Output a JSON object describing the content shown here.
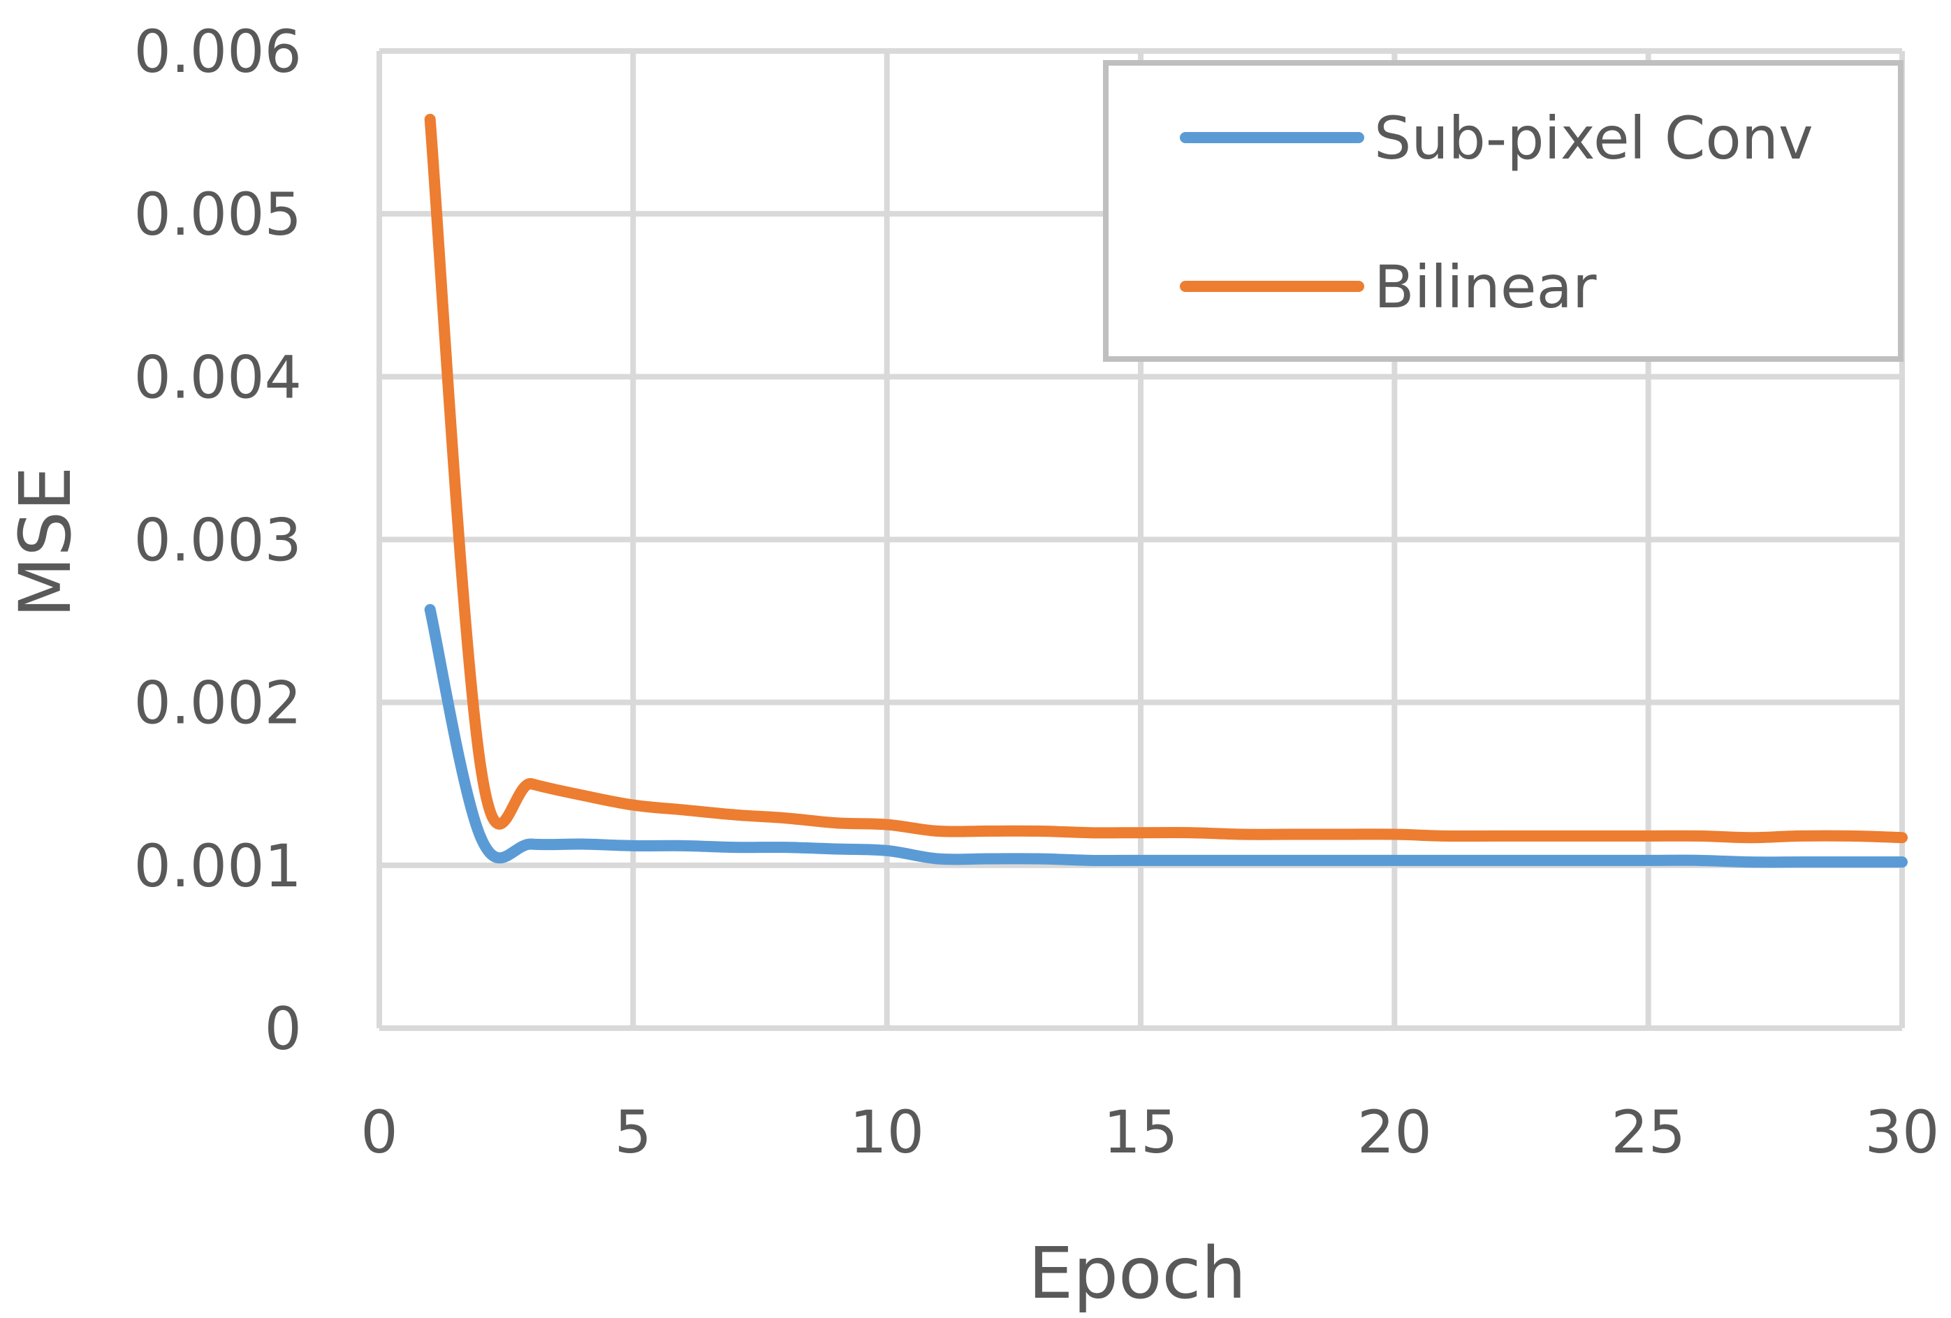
{
  "chart_data": {
    "type": "line",
    "title": "",
    "xlabel": "Epoch",
    "ylabel": "MSE",
    "xlim": [
      0,
      30
    ],
    "ylim": [
      0,
      0.006
    ],
    "x_ticks": [
      "0",
      "5",
      "10",
      "15",
      "20",
      "25",
      "30"
    ],
    "y_ticks": [
      "0",
      "0.001",
      "0.002",
      "0.003",
      "0.004",
      "0.005",
      "0.006"
    ],
    "grid": true,
    "legend_position": "top-right",
    "x": [
      1,
      2,
      3,
      4,
      5,
      6,
      7,
      8,
      9,
      10,
      11,
      12,
      13,
      14,
      15,
      16,
      17,
      18,
      19,
      20,
      21,
      22,
      23,
      24,
      25,
      26,
      27,
      28,
      29,
      30
    ],
    "series": [
      {
        "name": "Sub-pixel Conv",
        "color": "#5b9bd5",
        "values": [
          0.00257,
          0.00117,
          0.00113,
          0.00113,
          0.00112,
          0.00112,
          0.00111,
          0.00111,
          0.0011,
          0.00109,
          0.00104,
          0.00104,
          0.00104,
          0.00103,
          0.00103,
          0.00103,
          0.00103,
          0.00103,
          0.00103,
          0.00103,
          0.00103,
          0.00103,
          0.00103,
          0.00103,
          0.00103,
          0.00103,
          0.00102,
          0.00102,
          0.00102,
          0.00102
        ]
      },
      {
        "name": "Bilinear",
        "color": "#ed7d31",
        "values": [
          0.00558,
          0.0016,
          0.0015,
          0.00143,
          0.00137,
          0.00134,
          0.00131,
          0.00129,
          0.00126,
          0.00125,
          0.00121,
          0.00121,
          0.00121,
          0.0012,
          0.0012,
          0.0012,
          0.00119,
          0.00119,
          0.00119,
          0.00119,
          0.00118,
          0.00118,
          0.00118,
          0.00118,
          0.00118,
          0.00118,
          0.00117,
          0.00118,
          0.00118,
          0.00117
        ]
      }
    ]
  }
}
